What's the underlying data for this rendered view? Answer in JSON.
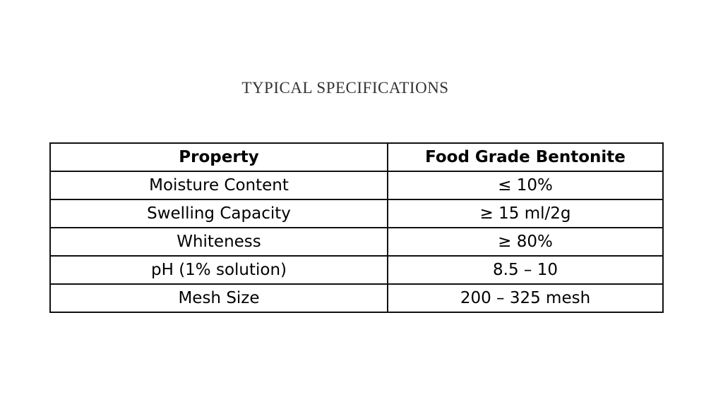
{
  "header": {
    "title": "TYPICAL SPECIFICATIONS"
  },
  "table": {
    "columns": [
      "Property",
      "Food Grade Bentonite"
    ],
    "rows": [
      [
        "Moisture Content",
        "≤ 10%"
      ],
      [
        "Swelling Capacity",
        "≥ 15 ml/2g"
      ],
      [
        "Whiteness",
        "≥ 80%"
      ],
      [
        "pH (1% solution)",
        "8.5 – 10"
      ],
      [
        "Mesh Size",
        "200 – 325 mesh"
      ]
    ]
  }
}
